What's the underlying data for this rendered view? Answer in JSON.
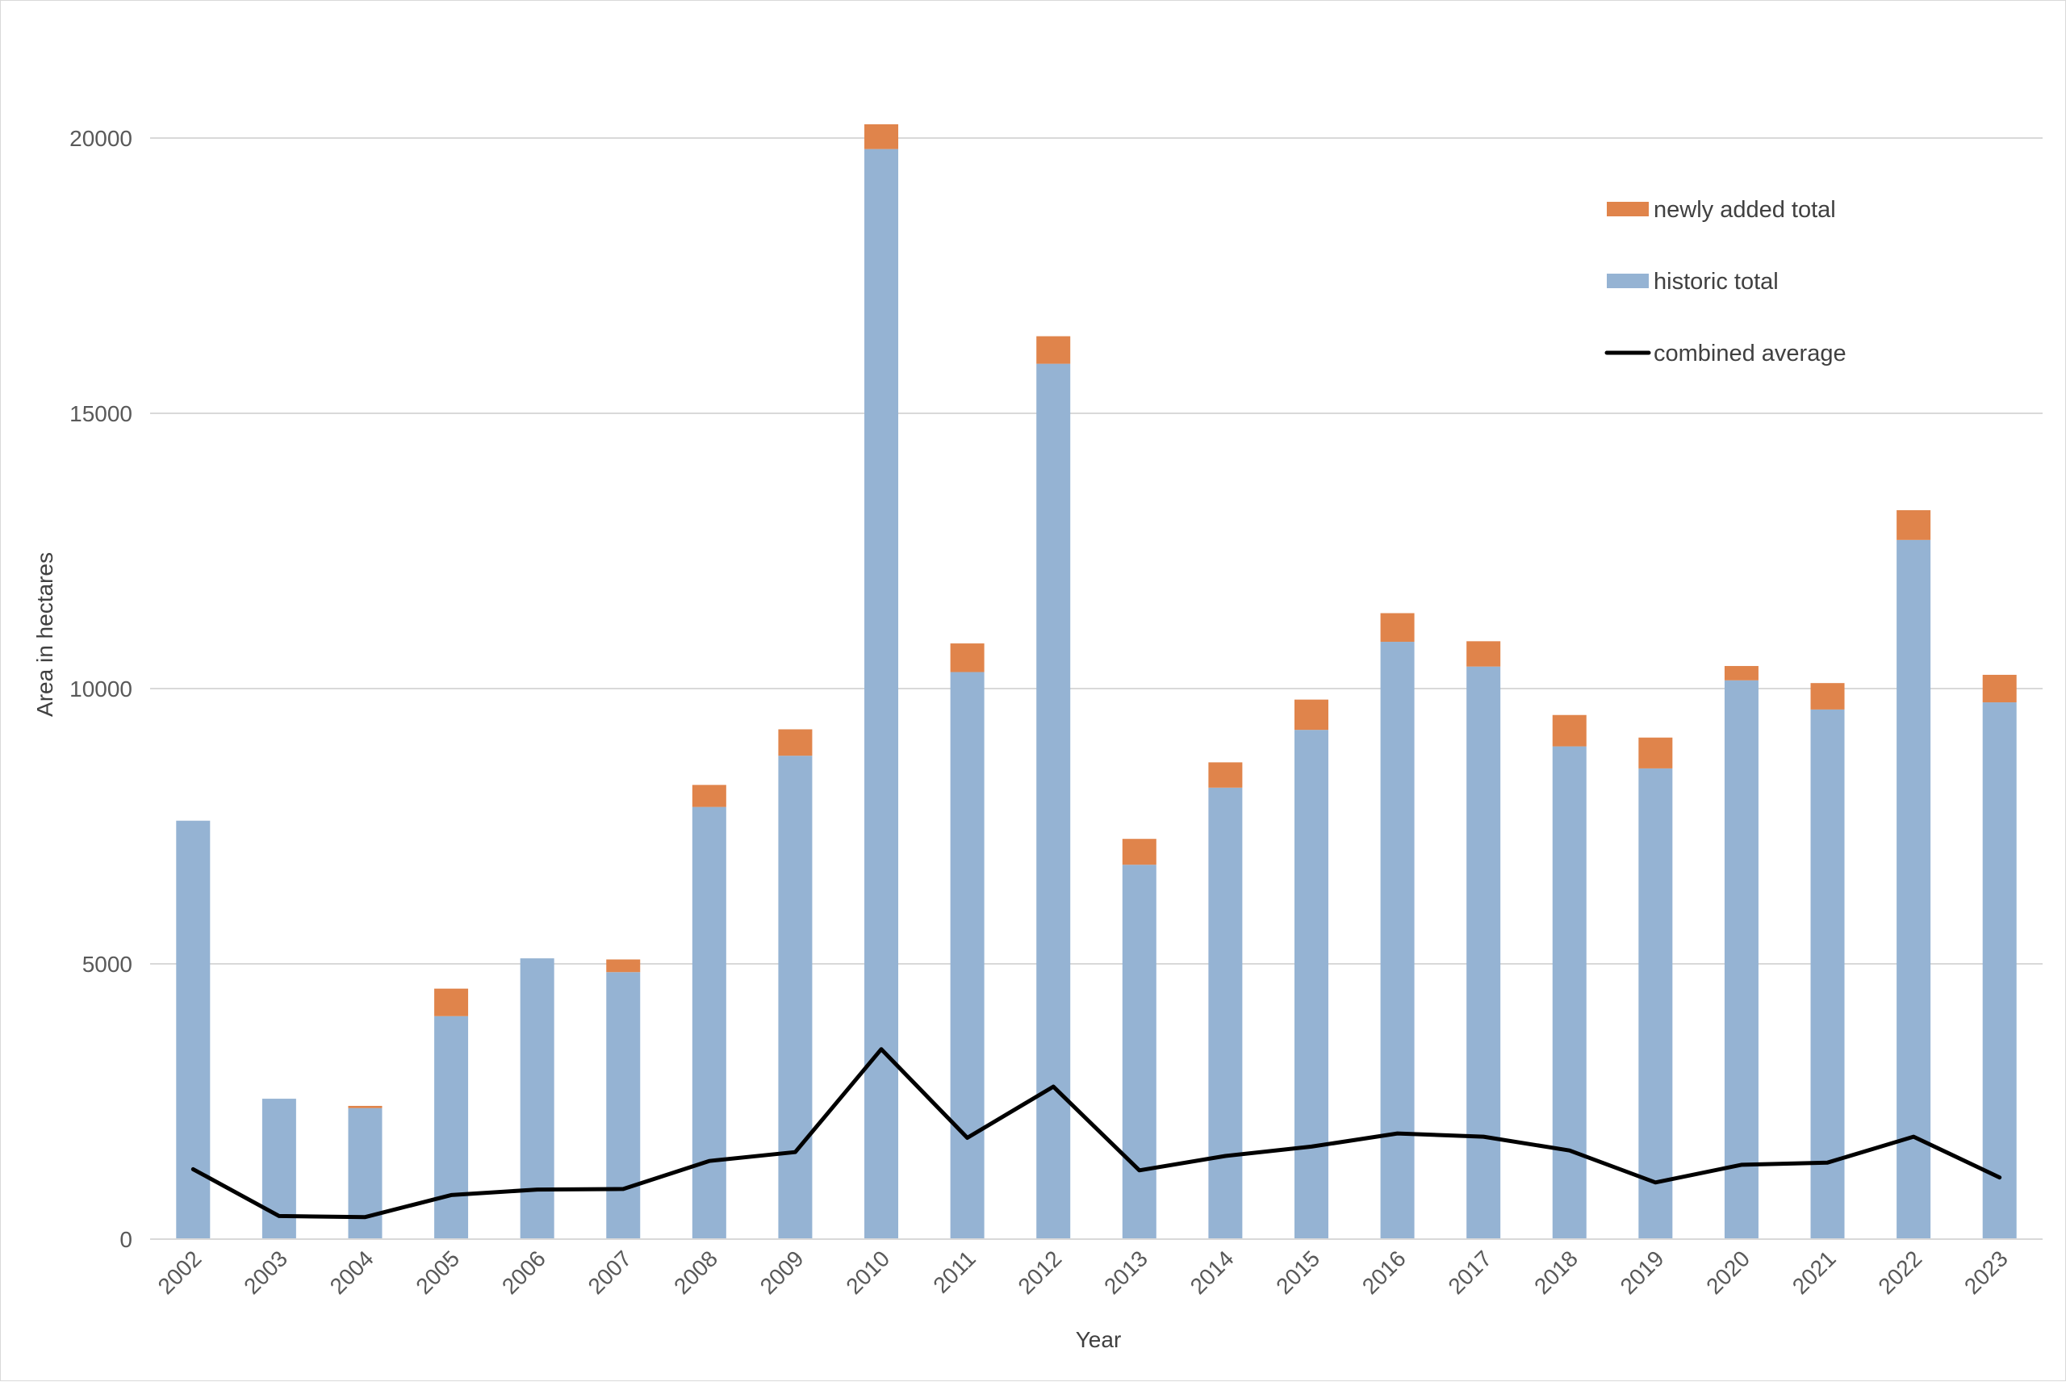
{
  "chart_data": {
    "type": "bar",
    "stacked": true,
    "title": "",
    "xlabel": "Year",
    "ylabel": "Area in hectares",
    "ylim": [
      0,
      20000
    ],
    "yticks": [
      0,
      5000,
      10000,
      15000,
      20000
    ],
    "ytick_labels": [
      "0",
      "5000",
      "10000",
      "15000",
      "20000"
    ],
    "grid": true,
    "legend_position": "top-right",
    "categories": [
      "2002",
      "2003",
      "2004",
      "2005",
      "2006",
      "2007",
      "2008",
      "2009",
      "2010",
      "2011",
      "2012",
      "2013",
      "2014",
      "2015",
      "2016",
      "2017",
      "2018",
      "2019",
      "2020",
      "2021",
      "2022",
      "2023"
    ],
    "series": [
      {
        "name": "historic total",
        "kind": "bar",
        "color": "#95b3d3",
        "values": [
          7600,
          2550,
          2380,
          4050,
          5100,
          4850,
          7850,
          8780,
          19800,
          10300,
          15900,
          6800,
          8200,
          9250,
          10850,
          10400,
          8950,
          8550,
          10150,
          9620,
          12700,
          9750
        ]
      },
      {
        "name": "newly added total",
        "kind": "bar",
        "color": "#e0844b",
        "values": [
          0,
          0,
          40,
          500,
          0,
          230,
          400,
          480,
          450,
          520,
          500,
          470,
          460,
          550,
          520,
          460,
          570,
          560,
          260,
          480,
          540,
          500
        ]
      },
      {
        "name": "combined average",
        "kind": "line",
        "color": "#000000",
        "values": [
          1270,
          420,
          400,
          800,
          900,
          910,
          1420,
          1580,
          3450,
          1840,
          2770,
          1250,
          1510,
          1680,
          1920,
          1860,
          1610,
          1030,
          1350,
          1390,
          1860,
          1120
        ]
      }
    ],
    "legend_order": [
      "newly added total",
      "historic total",
      "combined average"
    ]
  }
}
